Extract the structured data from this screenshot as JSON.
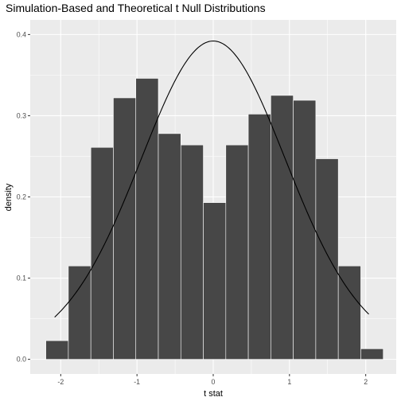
{
  "chart_data": {
    "type": "bar",
    "title": "Simulation-Based and Theoretical t Null Distributions",
    "xlabel": "t stat",
    "ylabel": "density",
    "xlim": [
      -2.4,
      2.4
    ],
    "ylim": [
      -0.018,
      0.418
    ],
    "x_ticks": [
      -2,
      -1,
      0,
      1,
      2
    ],
    "x_tick_labels": [
      "-2",
      "-1",
      "0",
      "1",
      "2"
    ],
    "y_ticks": [
      0.0,
      0.1,
      0.2,
      0.3,
      0.4
    ],
    "y_tick_labels": [
      "0.0",
      "0.1",
      "0.2",
      "0.3",
      "0.4"
    ],
    "grid": true,
    "background": "#ebebeb",
    "colors": {
      "bar_fill": "#474747",
      "bar_outline": "#ffffff",
      "curve": "#000000",
      "grid": "#ffffff"
    },
    "histogram": {
      "bin_width": 0.295,
      "bin_left_edges": [
        -2.195,
        -1.9,
        -1.605,
        -1.31,
        -1.015,
        -0.72,
        -0.425,
        -0.13,
        0.165,
        0.46,
        0.755,
        1.05,
        1.345,
        1.64,
        1.935
      ],
      "density": [
        0.023,
        0.115,
        0.261,
        0.322,
        0.346,
        0.278,
        0.264,
        0.193,
        0.264,
        0.302,
        0.325,
        0.319,
        0.247,
        0.115,
        0.013
      ]
    },
    "theoretical_curve": {
      "distribution": "t",
      "x_range": [
        -2.08,
        2.04
      ],
      "peak_density": 0.392
    }
  }
}
